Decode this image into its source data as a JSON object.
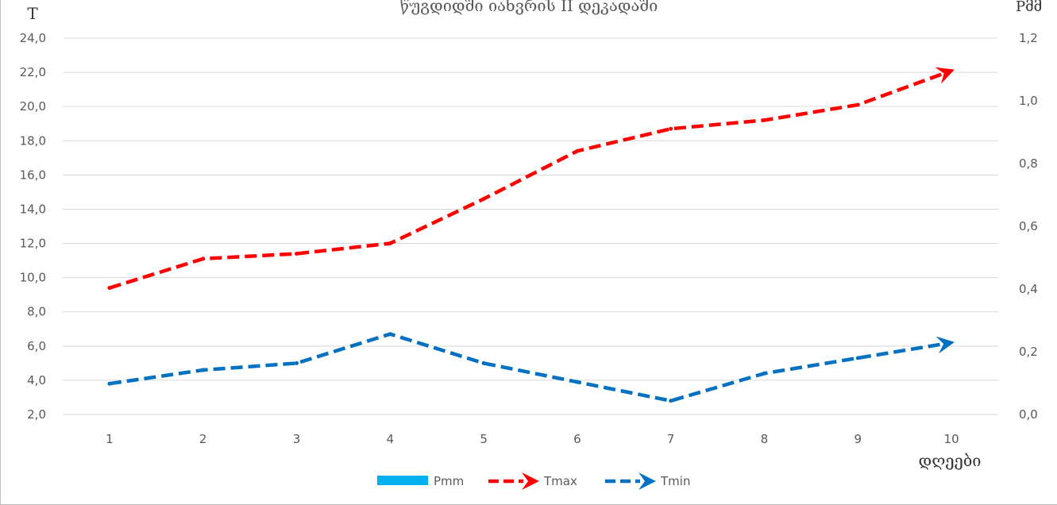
{
  "chart_data": {
    "type": "line",
    "title": "წუგდიდში იანვრის II დეკადაში",
    "y_left_label": "T",
    "y_right_label": "Pმმ",
    "x_label": "დღეები",
    "categories": [
      "1",
      "2",
      "3",
      "4",
      "5",
      "6",
      "7",
      "8",
      "9",
      "10"
    ],
    "y_left_lim": [
      2.0,
      24.0
    ],
    "y_left_ticks": [
      "2,0",
      "4,0",
      "6,0",
      "8,0",
      "10,0",
      "12,0",
      "14,0",
      "16,0",
      "18,0",
      "20,0",
      "22,0",
      "24,0"
    ],
    "y_right_lim": [
      0.0,
      1.2
    ],
    "y_right_ticks": [
      "0,0",
      "0,2",
      "0,4",
      "0,6",
      "0,8",
      "1,0",
      "1,2"
    ],
    "grid": true,
    "legend_position": "bottom",
    "series": [
      {
        "name": "Pmm",
        "style": "bar",
        "color": "#00b0f0",
        "axis": "right",
        "values": [
          0,
          0,
          0,
          0,
          0,
          0,
          0,
          0,
          0,
          0
        ]
      },
      {
        "name": "Tmax",
        "style": "dashed-arrow",
        "color": "#ff0000",
        "axis": "left",
        "values": [
          9.4,
          11.1,
          11.4,
          12.0,
          14.6,
          17.4,
          18.7,
          19.2,
          20.1,
          22.1
        ]
      },
      {
        "name": "Tmin",
        "style": "dashed-arrow",
        "color": "#0070c0",
        "axis": "left",
        "values": [
          3.8,
          4.6,
          5.0,
          6.7,
          5.0,
          3.9,
          2.8,
          4.4,
          5.3,
          6.2
        ]
      }
    ]
  }
}
